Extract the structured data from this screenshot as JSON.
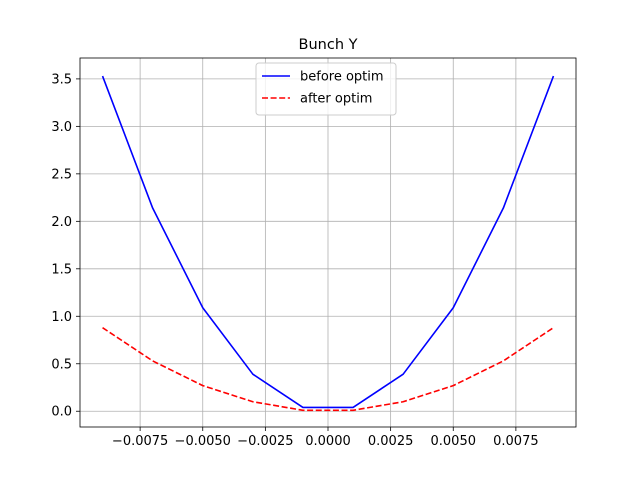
{
  "chart_data": {
    "type": "line",
    "title": "Bunch Y",
    "xlabel": "",
    "ylabel": "",
    "x": [
      -0.009,
      -0.007,
      -0.005,
      -0.003,
      -0.001,
      0.001,
      0.003,
      0.005,
      0.007,
      0.009
    ],
    "series": [
      {
        "name": "before optim",
        "color": "#0000ff",
        "style": "solid",
        "values": [
          3.53,
          2.14,
          1.09,
          0.39,
          0.04,
          0.04,
          0.39,
          1.09,
          2.14,
          3.53
        ]
      },
      {
        "name": "after optim",
        "color": "#ff0000",
        "style": "dashed",
        "values": [
          0.88,
          0.53,
          0.27,
          0.1,
          0.01,
          0.01,
          0.1,
          0.27,
          0.53,
          0.88
        ]
      }
    ],
    "xlim": [
      -0.0099,
      0.0099
    ],
    "ylim": [
      -0.166,
      3.72
    ],
    "xticks": [
      -0.0075,
      -0.005,
      -0.0025,
      0,
      0.0025,
      0.005,
      0.0075
    ],
    "xtick_labels": [
      "−0.0075",
      "−0.0050",
      "−0.0025",
      "0.0000",
      "0.0025",
      "0.0050",
      "0.0075"
    ],
    "yticks": [
      0,
      0.5,
      1,
      1.5,
      2,
      2.5,
      3,
      3.5
    ],
    "ytick_labels": [
      "0.0",
      "0.5",
      "1.0",
      "1.5",
      "2.0",
      "2.5",
      "3.0",
      "3.5"
    ],
    "grid": true,
    "legend_position": "upper center"
  }
}
